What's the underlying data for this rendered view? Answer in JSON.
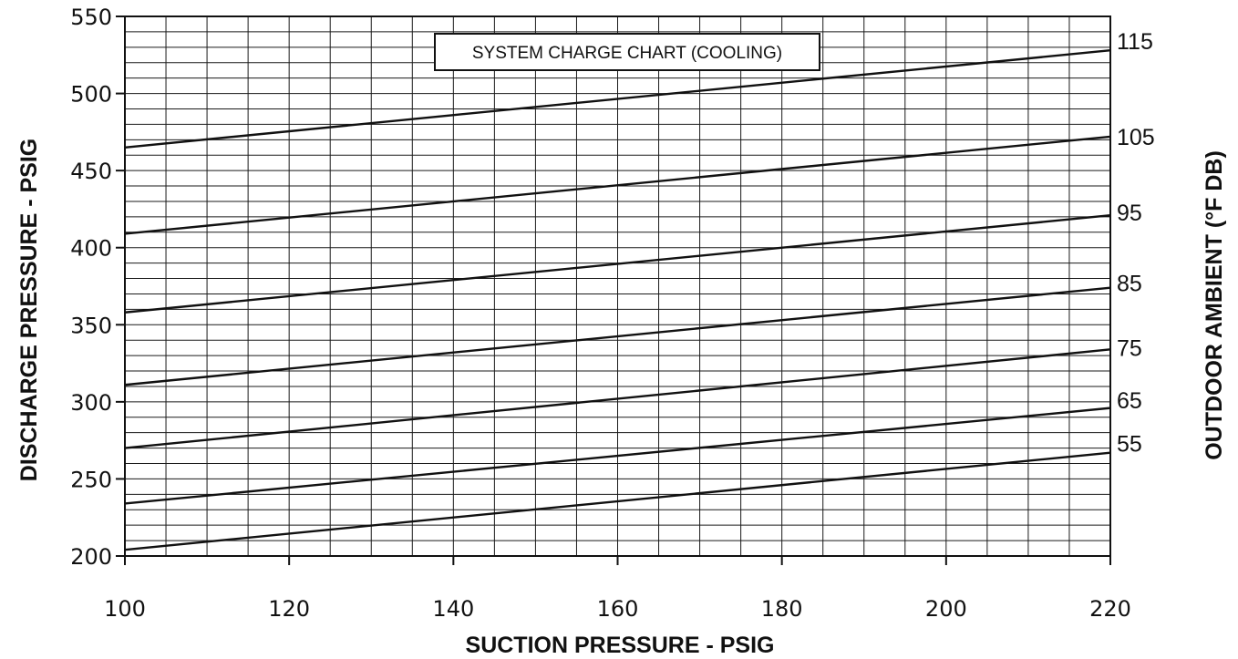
{
  "chart_data": {
    "type": "line",
    "title": "SYSTEM CHARGE CHART (COOLING)",
    "xlabel": "SUCTION PRESSURE - PSIG",
    "ylabel": "DISCHARGE PRESSURE - PSIG",
    "y2label": "OUTDOOR AMBIENT (°F DB)",
    "xlim": [
      100,
      220
    ],
    "ylim": [
      200,
      550
    ],
    "x_ticks": [
      "100",
      "120",
      "140",
      "160",
      "180",
      "200",
      "220"
    ],
    "y_ticks": [
      "200",
      "250",
      "300",
      "350",
      "400",
      "450",
      "500",
      "550"
    ],
    "grid": true,
    "x_minor_step": 5,
    "y_minor_step": 10,
    "x": [
      100,
      220
    ],
    "series": [
      {
        "name": "115",
        "values": [
          465,
          528
        ]
      },
      {
        "name": "105",
        "values": [
          409,
          472
        ]
      },
      {
        "name": "95",
        "values": [
          358,
          421
        ]
      },
      {
        "name": "85",
        "values": [
          311,
          374
        ]
      },
      {
        "name": "75",
        "values": [
          270,
          334
        ]
      },
      {
        "name": "65",
        "values": [
          234,
          296
        ]
      },
      {
        "name": "55",
        "values": [
          204,
          267
        ]
      }
    ],
    "right_axis_labels": [
      {
        "text": "115",
        "y": 534
      },
      {
        "text": "105",
        "y": 472
      },
      {
        "text": "95",
        "y": 423
      },
      {
        "text": "85",
        "y": 377
      },
      {
        "text": "75",
        "y": 335
      },
      {
        "text": "65",
        "y": 301
      },
      {
        "text": "55",
        "y": 273
      }
    ]
  }
}
